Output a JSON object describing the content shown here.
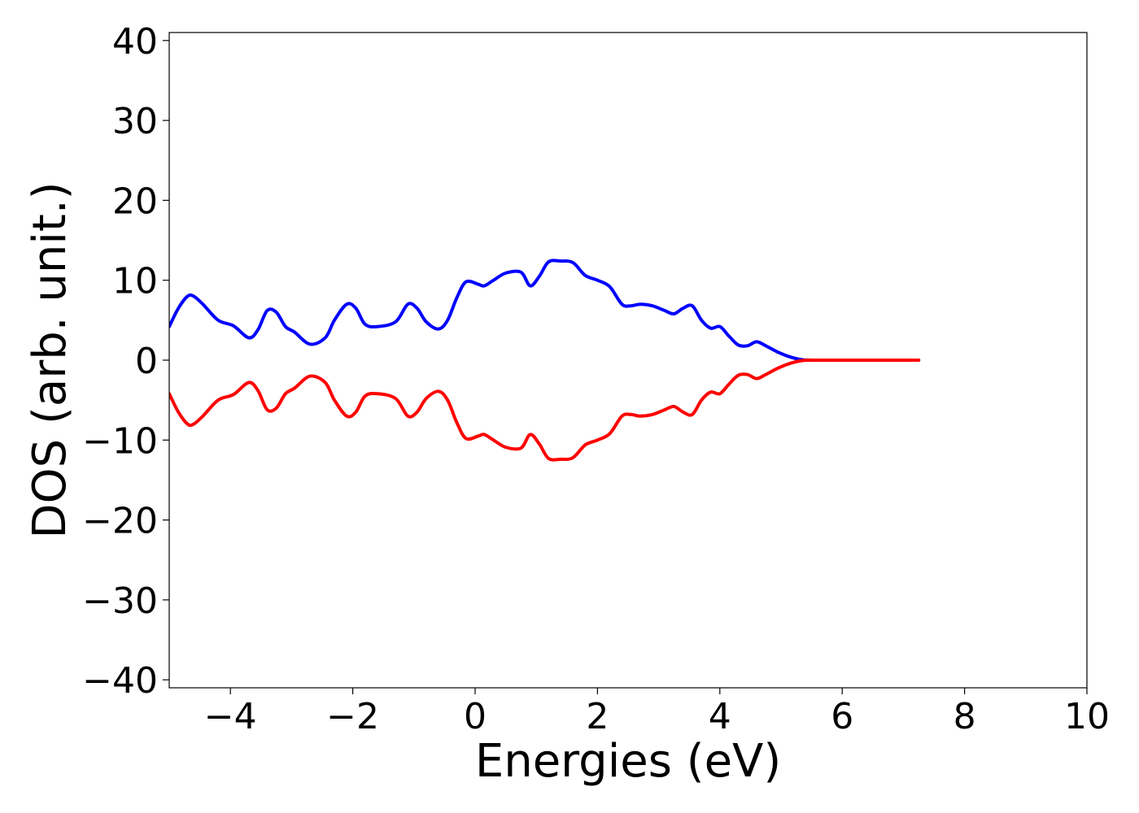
{
  "chart_data": {
    "type": "line",
    "xlabel": "Energies (eV)",
    "ylabel": "DOS (arb. unit.)",
    "xlim": [
      -5,
      10
    ],
    "ylim": [
      -41,
      41
    ],
    "xticks": [
      -4,
      -2,
      0,
      2,
      4,
      6,
      8,
      10
    ],
    "yticks": [
      -40,
      -30,
      -20,
      -10,
      0,
      10,
      20,
      30,
      40
    ],
    "grid": false,
    "legend": "none",
    "series": [
      {
        "color": "#0000ff",
        "x": [
          -5.0,
          -4.85,
          -4.7,
          -4.6,
          -4.45,
          -4.2,
          -3.95,
          -3.7,
          -3.55,
          -3.4,
          -3.25,
          -3.1,
          -2.95,
          -2.7,
          -2.45,
          -2.3,
          -2.1,
          -1.95,
          -1.8,
          -1.6,
          -1.3,
          -1.1,
          -0.95,
          -0.8,
          -0.6,
          -0.45,
          -0.3,
          -0.15,
          0.05,
          0.15,
          0.3,
          0.5,
          0.75,
          0.9,
          1.05,
          1.2,
          1.4,
          1.6,
          1.8,
          2.0,
          2.2,
          2.4,
          2.55,
          2.7,
          2.9,
          3.1,
          3.25,
          3.4,
          3.55,
          3.7,
          3.85,
          4.0,
          4.15,
          4.3,
          4.45,
          4.6,
          4.75,
          4.95,
          5.15,
          5.35,
          5.6,
          6.0,
          6.5,
          7.0,
          7.25
        ],
        "y": [
          4.2,
          6.5,
          8.0,
          8.0,
          7.0,
          5.0,
          4.3,
          2.8,
          3.8,
          6.2,
          6.0,
          4.2,
          3.5,
          2.0,
          2.8,
          5.0,
          7.0,
          6.5,
          4.5,
          4.2,
          4.8,
          7.0,
          6.5,
          4.8,
          3.9,
          5.0,
          7.8,
          9.8,
          9.5,
          9.3,
          10.0,
          10.9,
          11.0,
          9.3,
          10.5,
          12.3,
          12.4,
          12.2,
          10.6,
          10.0,
          9.2,
          7.0,
          6.8,
          7.0,
          6.8,
          6.2,
          5.8,
          6.5,
          6.8,
          5.0,
          4.0,
          4.2,
          3.0,
          1.9,
          1.8,
          2.3,
          1.8,
          1.0,
          0.4,
          0.05,
          0.0,
          0.0,
          0.0,
          0.0,
          0.0
        ]
      },
      {
        "color": "#ff0000",
        "x": [
          -5.0,
          -4.85,
          -4.7,
          -4.6,
          -4.45,
          -4.2,
          -3.95,
          -3.7,
          -3.55,
          -3.4,
          -3.25,
          -3.1,
          -2.95,
          -2.7,
          -2.45,
          -2.3,
          -2.1,
          -1.95,
          -1.8,
          -1.6,
          -1.3,
          -1.1,
          -0.95,
          -0.8,
          -0.6,
          -0.45,
          -0.3,
          -0.15,
          0.05,
          0.15,
          0.3,
          0.5,
          0.75,
          0.9,
          1.05,
          1.2,
          1.4,
          1.6,
          1.8,
          2.0,
          2.2,
          2.4,
          2.55,
          2.7,
          2.9,
          3.1,
          3.25,
          3.4,
          3.55,
          3.7,
          3.85,
          4.0,
          4.15,
          4.3,
          4.45,
          4.6,
          4.75,
          4.95,
          5.15,
          5.35,
          5.6,
          6.0,
          6.5,
          7.0,
          7.25
        ],
        "y": [
          -4.2,
          -6.5,
          -8.0,
          -8.0,
          -7.0,
          -5.0,
          -4.3,
          -2.8,
          -3.8,
          -6.2,
          -6.0,
          -4.2,
          -3.5,
          -2.0,
          -2.8,
          -5.0,
          -7.0,
          -6.5,
          -4.5,
          -4.2,
          -4.8,
          -7.0,
          -6.5,
          -4.8,
          -3.9,
          -5.0,
          -7.8,
          -9.8,
          -9.5,
          -9.3,
          -10.0,
          -10.9,
          -11.0,
          -9.3,
          -10.5,
          -12.3,
          -12.4,
          -12.2,
          -10.6,
          -10.0,
          -9.2,
          -7.0,
          -6.8,
          -7.0,
          -6.8,
          -6.2,
          -5.8,
          -6.5,
          -6.8,
          -5.0,
          -4.0,
          -4.2,
          -3.0,
          -1.9,
          -1.8,
          -2.3,
          -1.8,
          -1.0,
          -0.4,
          -0.05,
          0.0,
          0.0,
          0.0,
          0.0,
          0.0
        ]
      }
    ]
  }
}
